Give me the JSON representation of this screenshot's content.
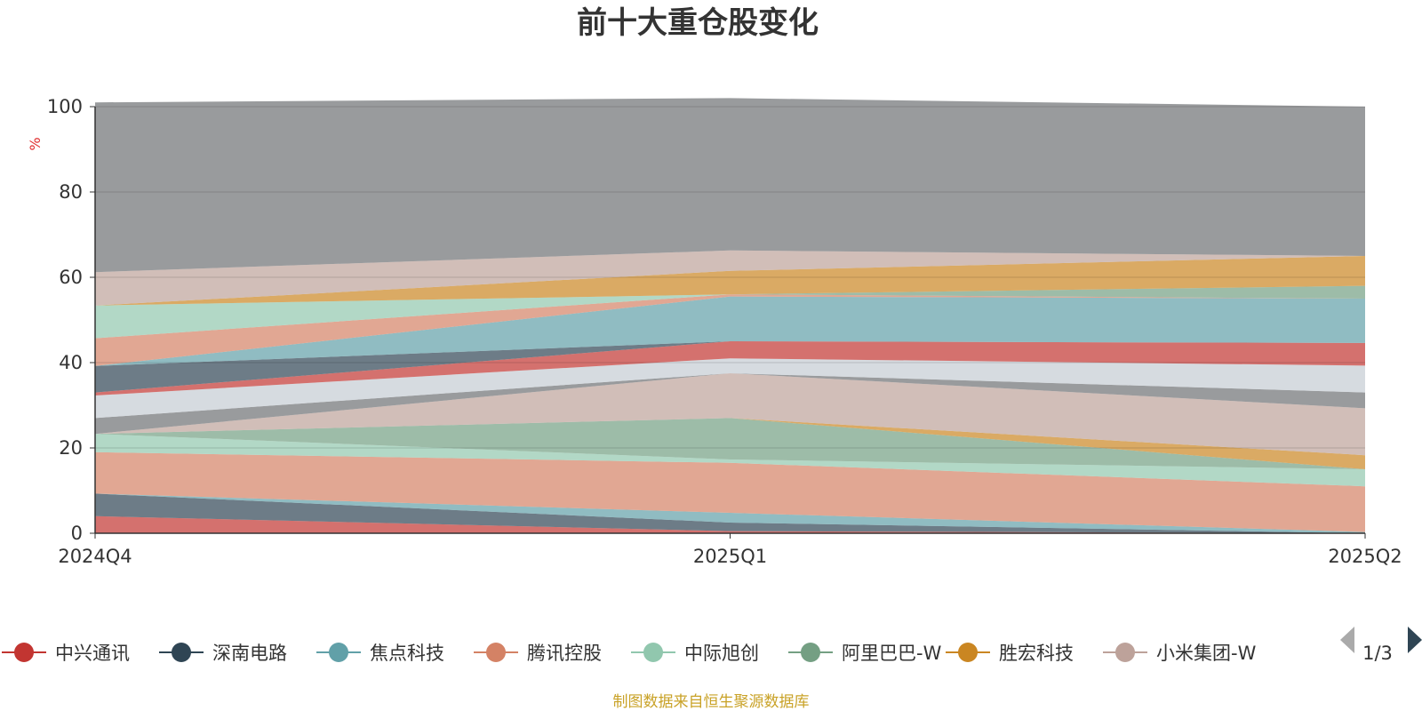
{
  "title": "前十大重仓股变化",
  "source_note": "制图数据来自恒生聚源数据库",
  "legend_pager": "1/3",
  "chart_data": {
    "type": "area",
    "stacked": true,
    "title": "前十大重仓股变化",
    "ylabel": "%",
    "categories": [
      "2024Q4",
      "2025Q1",
      "2025Q2"
    ],
    "ylim": [
      0,
      100
    ],
    "yticks": [
      0,
      20,
      40,
      60,
      80,
      100
    ],
    "grid": true,
    "legend_position": "bottom",
    "series": [
      {
        "name": "中兴通讯",
        "color": "#c23531",
        "values": [
          4.0,
          0.5,
          0.0
        ],
        "in_legend": true
      },
      {
        "name": "深南电路",
        "color": "#2f4554",
        "values": [
          5.3,
          2.0,
          0.0
        ],
        "in_legend": true
      },
      {
        "name": "焦点科技",
        "color": "#61a0a8",
        "values": [
          0.0,
          2.3,
          0.3
        ],
        "in_legend": true
      },
      {
        "name": "腾讯控股",
        "color": "#d48265",
        "values": [
          9.7,
          11.7,
          10.7
        ],
        "in_legend": true
      },
      {
        "name": "中际旭创",
        "color": "#91c7ae",
        "values": [
          4.3,
          0.8,
          4.0
        ],
        "in_legend": true
      },
      {
        "name": "阿里巴巴-W",
        "color": "#749f83",
        "values": [
          0.0,
          9.7,
          0.0
        ],
        "in_legend": true
      },
      {
        "name": "胜宏科技",
        "color": "#ca8622",
        "values": [
          0.0,
          0.0,
          3.3
        ],
        "in_legend": true
      },
      {
        "name": "小米集团-W",
        "color": "#bda29a",
        "values": [
          0.0,
          10.5,
          11.0
        ],
        "in_legend": true
      },
      {
        "name": "",
        "color": "#6e7074",
        "values": [
          3.7,
          0.0,
          3.7
        ],
        "in_legend": false
      },
      {
        "name": "",
        "color": "#c4ccd3",
        "values": [
          5.3,
          3.5,
          6.3
        ],
        "in_legend": false
      },
      {
        "name": "",
        "color": "#c23531",
        "values": [
          0.7,
          4.0,
          5.3
        ],
        "in_legend": false
      },
      {
        "name": "",
        "color": "#2f4554",
        "values": [
          6.2,
          0.0,
          0.0
        ],
        "in_legend": false
      },
      {
        "name": "",
        "color": "#61a0a8",
        "values": [
          0.0,
          10.5,
          10.4
        ],
        "in_legend": false
      },
      {
        "name": "",
        "color": "#d48265",
        "values": [
          6.5,
          0.5,
          0.0
        ],
        "in_legend": false
      },
      {
        "name": "",
        "color": "#91c7ae",
        "values": [
          7.7,
          0.0,
          0.0
        ],
        "in_legend": false
      },
      {
        "name": "",
        "color": "#749f83",
        "values": [
          0.0,
          0.0,
          3.0
        ],
        "in_legend": false
      },
      {
        "name": "",
        "color": "#ca8622",
        "values": [
          0.0,
          5.5,
          7.0
        ],
        "in_legend": false
      },
      {
        "name": "",
        "color": "#bda29a",
        "values": [
          7.8,
          4.8,
          0.0
        ],
        "in_legend": false
      },
      {
        "name": "",
        "color": "#6e7074",
        "values": [
          39.8,
          35.7,
          35.0
        ],
        "in_legend": false
      }
    ]
  }
}
